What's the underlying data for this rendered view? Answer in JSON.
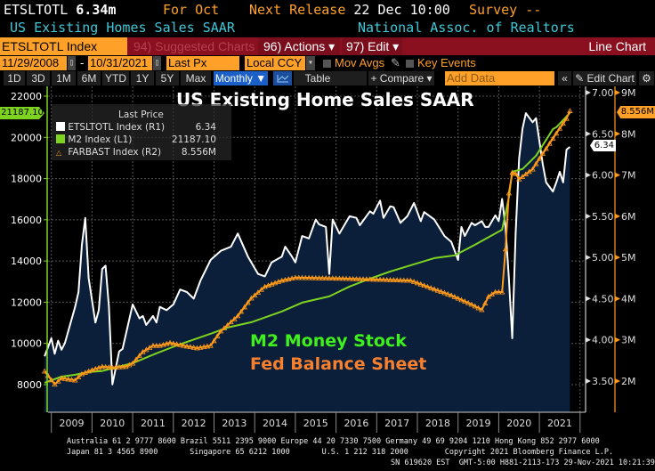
{
  "header": {
    "ticker": "ETSLTOTL",
    "last_value": "6.34m",
    "for_period": "For Oct",
    "next_release_label": "Next Release",
    "next_release_value": "22 Dec 10:00",
    "survey": "Survey --",
    "series_name": "US Existing Homes Sales SAAR",
    "source": "National Assoc. of Realtors"
  },
  "toolbar": {
    "security": "ETSLTOTL Index",
    "suggested": "94) Suggested Charts",
    "actions": "96) Actions ▾",
    "edit": "97) Edit ▾",
    "chart_type": "Line Chart",
    "start_date": "11/29/2008",
    "date_sep": "-",
    "end_date": "10/31/2021",
    "price_field": "Last Px",
    "currency": "Local CCY",
    "mov_avgs": "Mov Avgs",
    "key_events": "Key Events",
    "periods": [
      "1D",
      "3D",
      "1M",
      "6M",
      "YTD",
      "1Y",
      "5Y",
      "Max"
    ],
    "frequency": "Monthly ▼",
    "table": "Table",
    "compare": "+ Compare ▾",
    "add_data_placeholder": "Add Data",
    "collapse": "«",
    "edit_chart": "✎ Edit Chart",
    "gear": "⚙"
  },
  "colors": {
    "accent_orange": "#ffa028",
    "toolbar_red": "#8a1020",
    "m2_green": "#7ed321",
    "fed_orange": "#ff9a1a",
    "fill": "#0b1f3a"
  },
  "chart_data": {
    "type": "line",
    "title": "US Existing Home Sales SAAR",
    "annotations": [
      "M2 Money Stock",
      "Fed Balance Sheet"
    ],
    "legend": {
      "header": "Last Price",
      "entries": [
        {
          "name": "ETSLTOTL Index  (R1)",
          "last": "6.34",
          "color": "#ffffff",
          "marker": "square"
        },
        {
          "name": "M2 Index  (L1)",
          "last": "21187.10",
          "color": "#7ed321",
          "marker": "square"
        },
        {
          "name": "FARBAST Index  (R2)",
          "last": "8.556M",
          "color": "#ff9a1a",
          "marker": "triangle"
        }
      ],
      "placement": "top-left"
    },
    "x_ticks": [
      "2009",
      "2010",
      "2011",
      "2012",
      "2013",
      "2014",
      "2015",
      "2016",
      "2017",
      "2018",
      "2019",
      "2020",
      "2021"
    ],
    "left_axis": {
      "ticks": [
        "22000",
        "20000",
        "18000",
        "16000",
        "14000",
        "12000",
        "10000",
        "8000"
      ],
      "range": [
        7000,
        22500
      ],
      "current": "21187.10"
    },
    "right_axis_1": {
      "ticks": [
        "7.00",
        "6.50",
        "6.00",
        "5.50",
        "5.00",
        "4.50",
        "4.00",
        "3.50"
      ],
      "range": [
        3.2,
        7.0
      ],
      "current": "6.34"
    },
    "right_axis_2": {
      "ticks": [
        "9M",
        "8M",
        "7M",
        "6M",
        "5M",
        "4M",
        "3M",
        "2M"
      ],
      "range": [
        1.4,
        9.0
      ],
      "current": "8.556M"
    },
    "grid": true,
    "series": [
      {
        "name": "ETSLTOTL Index",
        "axis": "R1",
        "points": [
          [
            "2008-11",
            3.8
          ],
          [
            "2009-01",
            4.02
          ],
          [
            "2009-02",
            3.83
          ],
          [
            "2009-03",
            3.99
          ],
          [
            "2009-04",
            3.88
          ],
          [
            "2009-05",
            3.96
          ],
          [
            "2009-08",
            4.4
          ],
          [
            "2009-09",
            4.58
          ],
          [
            "2009-10",
            5.15
          ],
          [
            "2009-11",
            5.48
          ],
          [
            "2009-12",
            4.75
          ],
          [
            "2010-02",
            4.21
          ],
          [
            "2010-03",
            4.36
          ],
          [
            "2010-04",
            4.86
          ],
          [
            "2010-05",
            4.9
          ],
          [
            "2010-06",
            4.4
          ],
          [
            "2010-07",
            3.46
          ],
          [
            "2010-09",
            3.86
          ],
          [
            "2010-10",
            3.89
          ],
          [
            "2011-01",
            4.43
          ],
          [
            "2011-03",
            4.26
          ],
          [
            "2011-04",
            4.29
          ],
          [
            "2011-05",
            4.18
          ],
          [
            "2011-07",
            4.29
          ],
          [
            "2011-08",
            4.21
          ],
          [
            "2011-09",
            4.4
          ],
          [
            "2011-11",
            4.36
          ],
          [
            "2012-01",
            4.43
          ],
          [
            "2012-03",
            4.61
          ],
          [
            "2012-05",
            4.58
          ],
          [
            "2012-07",
            4.5
          ],
          [
            "2012-09",
            4.72
          ],
          [
            "2012-12",
            4.97
          ],
          [
            "2013-03",
            5.08
          ],
          [
            "2013-06",
            5.13
          ],
          [
            "2013-08",
            5.29
          ],
          [
            "2013-11",
            5.01
          ],
          [
            "2014-02",
            4.8
          ],
          [
            "2014-04",
            4.77
          ],
          [
            "2014-06",
            4.94
          ],
          [
            "2014-09",
            5.01
          ],
          [
            "2014-10",
            5.13
          ],
          [
            "2014-12",
            5.01
          ],
          [
            "2015-01",
            4.94
          ],
          [
            "2015-03",
            5.26
          ],
          [
            "2015-05",
            5.23
          ],
          [
            "2015-07",
            5.46
          ],
          [
            "2015-08",
            5.4
          ],
          [
            "2015-10",
            5.37
          ],
          [
            "2015-11",
            4.8
          ],
          [
            "2015-12",
            5.46
          ],
          [
            "2016-02",
            5.29
          ],
          [
            "2016-05",
            5.5
          ],
          [
            "2016-07",
            5.48
          ],
          [
            "2016-08",
            5.39
          ],
          [
            "2016-11",
            5.56
          ],
          [
            "2016-12",
            5.53
          ],
          [
            "2017-02",
            5.69
          ],
          [
            "2017-03",
            5.48
          ],
          [
            "2017-05",
            5.62
          ],
          [
            "2017-06",
            5.61
          ],
          [
            "2017-08",
            5.42
          ],
          [
            "2017-10",
            5.5
          ],
          [
            "2017-12",
            5.66
          ],
          [
            "2018-02",
            5.44
          ],
          [
            "2018-03",
            5.55
          ],
          [
            "2018-06",
            5.46
          ],
          [
            "2018-09",
            5.26
          ],
          [
            "2018-11",
            5.19
          ],
          [
            "2018-12",
            5.08
          ],
          [
            "2019-01",
            4.97
          ],
          [
            "2019-02",
            5.37
          ],
          [
            "2019-03",
            5.26
          ],
          [
            "2019-05",
            5.42
          ],
          [
            "2019-06",
            5.39
          ],
          [
            "2019-08",
            5.44
          ],
          [
            "2019-09",
            5.37
          ],
          [
            "2019-10",
            5.37
          ],
          [
            "2019-12",
            5.51
          ],
          [
            "2020-01",
            5.44
          ],
          [
            "2020-02",
            5.71
          ],
          [
            "2020-03",
            5.37
          ],
          [
            "2020-04",
            4.75
          ],
          [
            "2020-05",
            4.02
          ],
          [
            "2020-06",
            5.29
          ],
          [
            "2020-07",
            6.2
          ],
          [
            "2020-08",
            6.56
          ],
          [
            "2020-09",
            6.75
          ],
          [
            "2020-11",
            6.64
          ],
          [
            "2020-12",
            6.69
          ],
          [
            "2021-02",
            6.13
          ],
          [
            "2021-03",
            5.91
          ],
          [
            "2021-05",
            5.8
          ],
          [
            "2021-06",
            5.91
          ],
          [
            "2021-07",
            6.04
          ],
          [
            "2021-08",
            5.91
          ],
          [
            "2021-09",
            6.31
          ],
          [
            "2021-10",
            6.34
          ]
        ]
      },
      {
        "name": "M2 Index",
        "axis": "L1",
        "points": [
          [
            "2008-11",
            8090
          ],
          [
            "2009-04",
            8390
          ],
          [
            "2009-08",
            8480
          ],
          [
            "2009-12",
            8610
          ],
          [
            "2010-04",
            8660
          ],
          [
            "2011-01",
            9040
          ],
          [
            "2011-08",
            9520
          ],
          [
            "2012-02",
            9900
          ],
          [
            "2012-12",
            10470
          ],
          [
            "2013-05",
            10770
          ],
          [
            "2013-12",
            11030
          ],
          [
            "2014-09",
            11550
          ],
          [
            "2015-03",
            11980
          ],
          [
            "2015-11",
            12280
          ],
          [
            "2016-05",
            12760
          ],
          [
            "2016-11",
            13140
          ],
          [
            "2017-05",
            13490
          ],
          [
            "2017-12",
            13840
          ],
          [
            "2018-06",
            14140
          ],
          [
            "2018-12",
            14270
          ],
          [
            "2019-06",
            14790
          ],
          [
            "2020-02",
            15520
          ],
          [
            "2020-04",
            17080
          ],
          [
            "2020-05",
            18330
          ],
          [
            "2020-08",
            18460
          ],
          [
            "2020-12",
            19110
          ],
          [
            "2021-03",
            19880
          ],
          [
            "2021-05",
            20400
          ],
          [
            "2021-06",
            20490
          ],
          [
            "2021-10",
            21187.1
          ]
        ]
      },
      {
        "name": "FARBAST Index",
        "axis": "R2",
        "unit": "M",
        "points": [
          [
            "2008-11",
            2.24
          ],
          [
            "2009-02",
            1.92
          ],
          [
            "2009-04",
            2.07
          ],
          [
            "2009-08",
            2.02
          ],
          [
            "2009-10",
            2.17
          ],
          [
            "2009-12",
            2.24
          ],
          [
            "2010-04",
            2.35
          ],
          [
            "2010-07",
            2.33
          ],
          [
            "2010-11",
            2.35
          ],
          [
            "2011-01",
            2.43
          ],
          [
            "2011-04",
            2.71
          ],
          [
            "2011-07",
            2.86
          ],
          [
            "2011-09",
            2.86
          ],
          [
            "2011-12",
            2.93
          ],
          [
            "2012-04",
            2.86
          ],
          [
            "2012-08",
            2.8
          ],
          [
            "2012-12",
            2.86
          ],
          [
            "2013-03",
            3.21
          ],
          [
            "2013-08",
            3.58
          ],
          [
            "2013-12",
            4.01
          ],
          [
            "2014-04",
            4.29
          ],
          [
            "2014-09",
            4.44
          ],
          [
            "2015-01",
            4.51
          ],
          [
            "2016-02",
            4.49
          ],
          [
            "2017-03",
            4.46
          ],
          [
            "2017-11",
            4.44
          ],
          [
            "2018-06",
            4.23
          ],
          [
            "2018-11",
            4.08
          ],
          [
            "2019-05",
            3.86
          ],
          [
            "2019-08",
            3.73
          ],
          [
            "2019-10",
            4.05
          ],
          [
            "2019-12",
            4.16
          ],
          [
            "2020-02",
            4.16
          ],
          [
            "2020-03",
            5.2
          ],
          [
            "2020-04",
            6.56
          ],
          [
            "2020-05",
            7.06
          ],
          [
            "2020-06",
            7.03
          ],
          [
            "2020-07",
            6.9
          ],
          [
            "2020-11",
            7.14
          ],
          [
            "2021-01",
            7.4
          ],
          [
            "2021-03",
            7.64
          ],
          [
            "2021-06",
            8.01
          ],
          [
            "2021-09",
            8.37
          ],
          [
            "2021-10",
            8.556
          ]
        ]
      }
    ]
  },
  "footer": {
    "line1": "Australia 61 2 9777 8600 Brazil 5511 2395 9000 Europe 44 20 7330 7500 Germany 49 69 9204 1210 Hong Kong 852 2977 6000",
    "line2": "Japan 81 3 4565 8900       Singapore 65 6212 1000       U.S. 1 212 318 2000        Copyright 2021 Bloomberg Finance L.P.",
    "line3": "SN 619620 EST  GMT-5:00 H881-2113-173 29-Nov-2021 10:21:39"
  }
}
